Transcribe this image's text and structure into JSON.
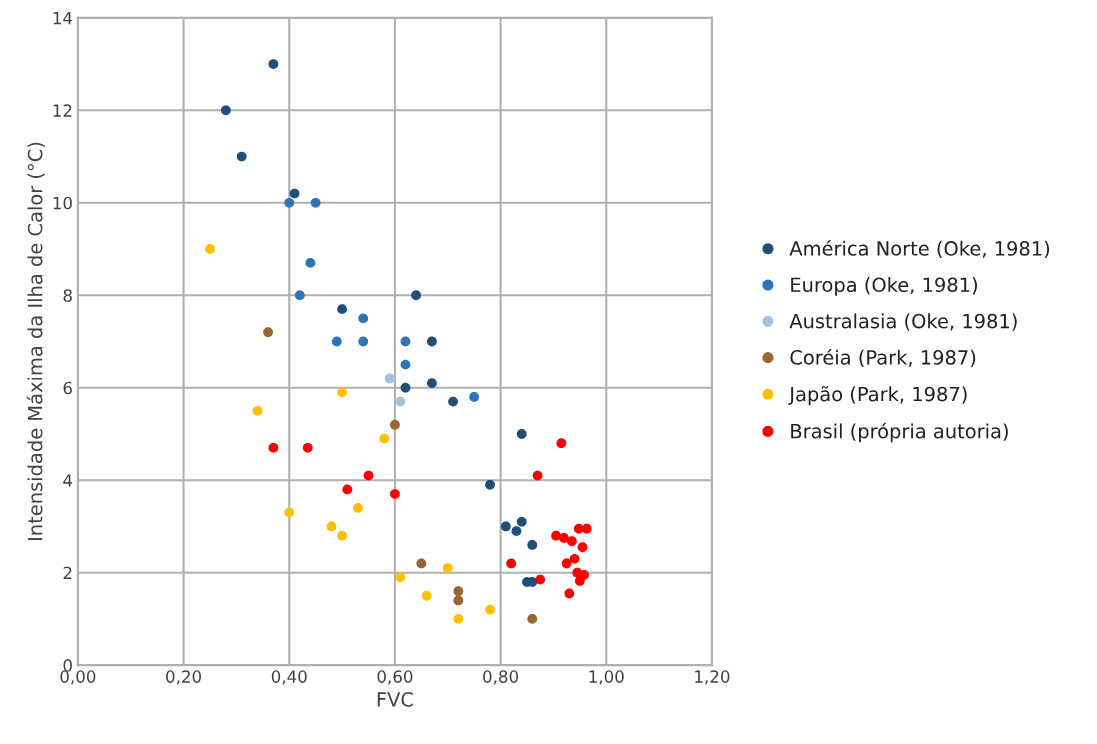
{
  "chart_data": {
    "type": "scatter",
    "xlabel": "FVC",
    "ylabel": "Intensidade Máxima da Ilha de Calor (°C)",
    "xlim": [
      0,
      1.2
    ],
    "ylim": [
      0,
      14
    ],
    "xticks": [
      {
        "value": 0,
        "label": "0,00"
      },
      {
        "value": 0.2,
        "label": "0,20"
      },
      {
        "value": 0.4,
        "label": "0,40"
      },
      {
        "value": 0.6,
        "label": "0,60"
      },
      {
        "value": 0.8,
        "label": "0,80"
      },
      {
        "value": 1.0,
        "label": "1,00"
      },
      {
        "value": 1.2,
        "label": "1,20"
      }
    ],
    "yticks": [
      0,
      2,
      4,
      6,
      8,
      10,
      12,
      14
    ],
    "grid": true,
    "legend": "right",
    "marker": "circle",
    "series": [
      {
        "name": "América Norte (Oke, 1981)",
        "color": "#1f4e79",
        "x": [
          0.37,
          0.28,
          0.31,
          0.41,
          0.5,
          0.64,
          0.67,
          0.62,
          0.67,
          0.71,
          0.84,
          0.78,
          0.81,
          0.84,
          0.83,
          0.86,
          0.85,
          0.86
        ],
        "values": [
          13,
          12,
          11,
          10.2,
          7.7,
          8.0,
          7.0,
          6.0,
          6.1,
          5.7,
          5.0,
          3.9,
          3.0,
          3.1,
          2.9,
          2.6,
          1.8,
          1.8
        ]
      },
      {
        "name": "Europa (Oke, 1981)",
        "color": "#2e75b6",
        "x": [
          0.4,
          0.45,
          0.44,
          0.42,
          0.54,
          0.49,
          0.54,
          0.62,
          0.62,
          0.75
        ],
        "values": [
          10,
          10,
          8.7,
          8.0,
          7.5,
          7.0,
          7.0,
          7.0,
          6.5,
          5.8
        ]
      },
      {
        "name": "Australasia (Oke, 1981)",
        "color": "#9dc3e6",
        "x": [
          0.59,
          0.61
        ],
        "values": [
          6.2,
          5.7
        ]
      },
      {
        "name": "Coréia (Park, 1987)",
        "color": "#996633",
        "x": [
          0.36,
          0.6,
          0.65,
          0.72,
          0.72,
          0.86
        ],
        "values": [
          7.2,
          5.2,
          2.2,
          1.6,
          1.4,
          1.0
        ]
      },
      {
        "name": "Japão (Park, 1987)",
        "color": "#ffc000",
        "x": [
          0.25,
          0.34,
          0.5,
          0.58,
          0.4,
          0.48,
          0.5,
          0.53,
          0.61,
          0.66,
          0.7,
          0.72,
          0.78
        ],
        "values": [
          9.0,
          5.5,
          5.9,
          4.9,
          3.3,
          3.0,
          2.8,
          3.4,
          1.9,
          1.5,
          2.1,
          1.0,
          1.2
        ]
      },
      {
        "name": "Brasil (própria autoria)",
        "color": "#ff0000",
        "x": [
          0.37,
          0.435,
          0.55,
          0.51,
          0.6,
          0.915,
          0.87,
          0.82,
          0.875,
          0.905,
          0.935,
          0.92,
          0.948,
          0.963,
          0.955,
          0.94,
          0.925,
          0.945,
          0.958,
          0.95,
          0.93
        ],
        "values": [
          4.7,
          4.7,
          4.1,
          3.8,
          3.7,
          4.8,
          4.1,
          2.2,
          1.85,
          2.8,
          2.68,
          2.75,
          2.95,
          2.95,
          2.55,
          2.3,
          2.2,
          2.0,
          1.95,
          1.82,
          1.55
        ]
      }
    ]
  }
}
